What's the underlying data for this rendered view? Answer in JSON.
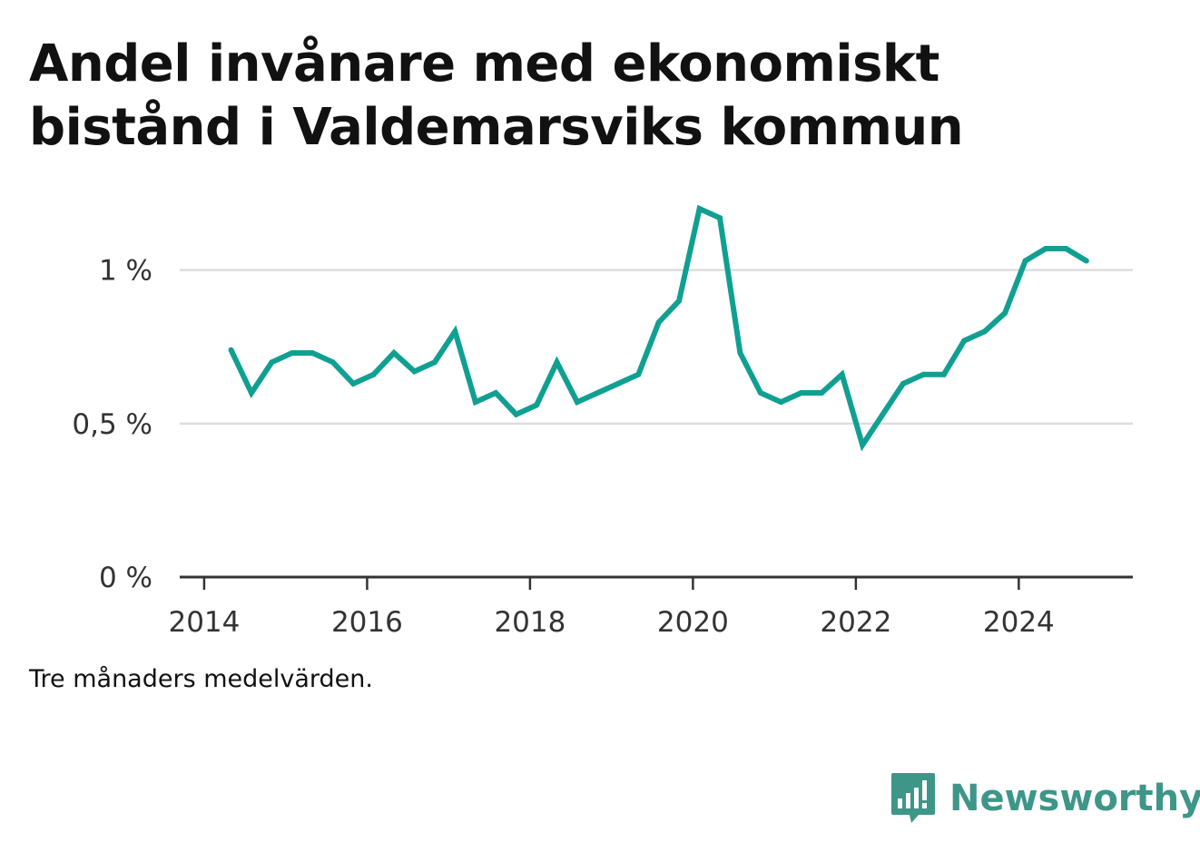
{
  "title_lines": [
    "Andel invånare med ekonomiskt",
    "bistånd i Valdemarsviks kommun"
  ],
  "note": "Tre månaders medelvärden.",
  "brand": {
    "name": "Newsworthy",
    "icon": "bar-chart-speech-bubble-icon",
    "color": "#3e9689"
  },
  "colors": {
    "line": "#10a091",
    "grid": "#dddddd",
    "axis": "#333333"
  },
  "chart_data": {
    "type": "line",
    "title": "Andel invånare med ekonomiskt bistånd i Valdemarsviks kommun",
    "xlabel": "",
    "ylabel": "",
    "xlim": [
      2013.7,
      2025.4
    ],
    "ylim": [
      0,
      1.2
    ],
    "x_ticks": [
      {
        "value": 2014,
        "label": "2014"
      },
      {
        "value": 2016,
        "label": "2016"
      },
      {
        "value": 2018,
        "label": "2018"
      },
      {
        "value": 2020,
        "label": "2020"
      },
      {
        "value": 2022,
        "label": "2022"
      },
      {
        "value": 2024,
        "label": "2024"
      }
    ],
    "y_ticks": [
      {
        "value": 0,
        "label": "0 %"
      },
      {
        "value": 0.5,
        "label": "0,5 %"
      },
      {
        "value": 1,
        "label": "1 %"
      }
    ],
    "grid": "horizontal",
    "series": [
      {
        "x": [
          2014.33,
          2014.58,
          2014.83,
          2015.08,
          2015.33,
          2015.58,
          2015.83,
          2016.08,
          2016.33,
          2016.58,
          2016.83,
          2017.08,
          2017.33,
          2017.58,
          2017.83,
          2018.08,
          2018.33,
          2018.58,
          2018.83,
          2019.08,
          2019.33,
          2019.58,
          2019.83,
          2020.08,
          2020.33,
          2020.58,
          2020.83,
          2021.08,
          2021.33,
          2021.58,
          2021.83,
          2022.08,
          2022.33,
          2022.58,
          2022.83,
          2023.08,
          2023.33,
          2023.58,
          2023.83,
          2024.08,
          2024.33,
          2024.58,
          2024.83
        ],
        "y": [
          0.74,
          0.6,
          0.7,
          0.73,
          0.73,
          0.7,
          0.63,
          0.66,
          0.73,
          0.67,
          0.7,
          0.8,
          0.57,
          0.6,
          0.53,
          0.56,
          0.7,
          0.57,
          0.6,
          0.63,
          0.66,
          0.83,
          0.9,
          1.2,
          1.17,
          0.73,
          0.6,
          0.57,
          0.6,
          0.6,
          0.66,
          0.43,
          0.53,
          0.63,
          0.66,
          0.66,
          0.77,
          0.8,
          0.86,
          1.03,
          1.07,
          1.07,
          1.03
        ]
      }
    ]
  }
}
